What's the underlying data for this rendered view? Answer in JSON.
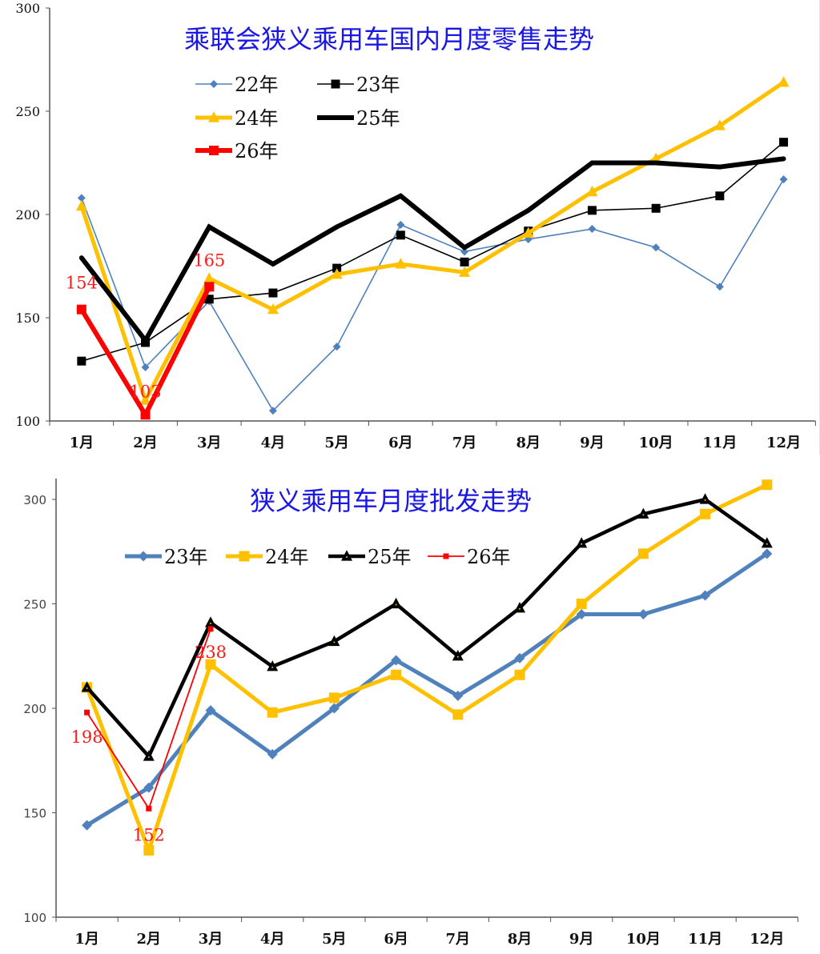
{
  "chart_data": [
    {
      "type": "line",
      "title": "乘联会狭义乘用车国内月度零售走势",
      "xlabel": "",
      "ylabel": "",
      "ylim": [
        100,
        300
      ],
      "yticks": [
        100,
        150,
        200,
        250,
        300
      ],
      "grid": false,
      "legend_position": "top-left",
      "categories": [
        "1月",
        "2月",
        "3月",
        "4月",
        "5月",
        "6月",
        "7月",
        "8月",
        "9月",
        "10月",
        "11月",
        "12月"
      ],
      "series": [
        {
          "name": "22年",
          "color": "#4f81bd",
          "marker": "diamond",
          "weight": "thin",
          "values": [
            208,
            126,
            158,
            105,
            136,
            195,
            182,
            188,
            193,
            184,
            165,
            217
          ]
        },
        {
          "name": "23年",
          "color": "#000000",
          "marker": "square",
          "weight": "thin",
          "values": [
            129,
            138,
            159,
            162,
            174,
            190,
            177,
            192,
            202,
            203,
            209,
            235
          ]
        },
        {
          "name": "24年",
          "color": "#ffc000",
          "marker": "triangle",
          "weight": "thick",
          "values": [
            204,
            110,
            169,
            154,
            171,
            176,
            172,
            191,
            211,
            227,
            243,
            264
          ]
        },
        {
          "name": "25年",
          "color": "#000000",
          "marker": "dot",
          "weight": "thick",
          "values": [
            179,
            139,
            194,
            176,
            194,
            209,
            184,
            202,
            225,
            225,
            223,
            227
          ]
        },
        {
          "name": "26年",
          "color": "#ff0000",
          "marker": "square",
          "weight": "thick",
          "values": [
            154,
            103,
            165
          ]
        }
      ],
      "annotations": [
        {
          "series": "26年",
          "index": 0,
          "text": "154"
        },
        {
          "series": "26年",
          "index": 1,
          "text": "103"
        },
        {
          "series": "26年",
          "index": 2,
          "text": "165"
        }
      ]
    },
    {
      "type": "line",
      "title": "狭义乘用车月度批发走势",
      "xlabel": "",
      "ylabel": "",
      "ylim": [
        100,
        310
      ],
      "yticks": [
        100,
        150,
        200,
        250,
        300
      ],
      "grid": false,
      "legend_position": "top-center",
      "categories": [
        "1月",
        "2月",
        "3月",
        "4月",
        "5月",
        "6月",
        "7月",
        "8月",
        "9月",
        "10月",
        "11月",
        "12月"
      ],
      "series": [
        {
          "name": "23年",
          "color": "#4f81bd",
          "marker": "diamond",
          "weight": "thick",
          "values": [
            144,
            162,
            199,
            178,
            200,
            223,
            206,
            224,
            245,
            245,
            254,
            274
          ]
        },
        {
          "name": "24年",
          "color": "#ffc000",
          "marker": "square",
          "weight": "thick",
          "values": [
            210,
            132,
            221,
            198,
            205,
            216,
            197,
            216,
            250,
            274,
            293,
            307
          ]
        },
        {
          "name": "25年",
          "color": "#000000",
          "marker": "triangle",
          "weight": "thick",
          "values": [
            210,
            177,
            241,
            220,
            232,
            250,
            225,
            248,
            279,
            293,
            300,
            279
          ]
        },
        {
          "name": "26年",
          "color": "#ff0000",
          "marker": "square",
          "weight": "thin",
          "values": [
            198,
            152,
            238
          ]
        }
      ],
      "annotations": [
        {
          "series": "26年",
          "index": 0,
          "text": "198"
        },
        {
          "series": "26年",
          "index": 1,
          "text": "152"
        },
        {
          "series": "26年",
          "index": 2,
          "text": "238"
        }
      ]
    }
  ]
}
